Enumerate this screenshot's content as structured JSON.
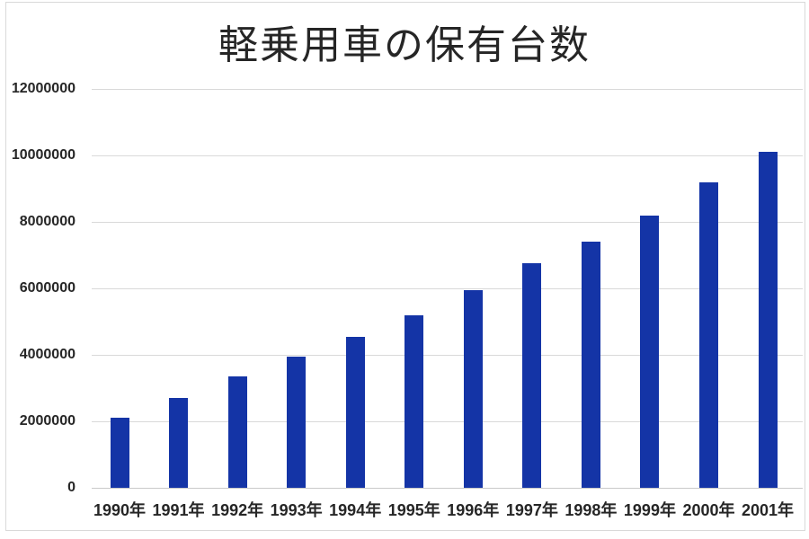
{
  "title": "軽乗用車の保有台数",
  "chart_data": {
    "type": "bar",
    "title": "軽乗用車の保有台数",
    "categories": [
      "1990年",
      "1991年",
      "1992年",
      "1993年",
      "1994年",
      "1995年",
      "1996年",
      "1997年",
      "1998年",
      "1999年",
      "2000年",
      "2001年"
    ],
    "values": [
      2100000,
      2700000,
      3350000,
      3950000,
      4550000,
      5200000,
      5950000,
      6750000,
      7400000,
      8200000,
      9200000,
      10100000
    ],
    "xlabel": "",
    "ylabel": "",
    "ylim": [
      0,
      12000000
    ],
    "yticks": [
      0,
      2000000,
      4000000,
      6000000,
      8000000,
      10000000,
      12000000
    ],
    "ytick_labels": [
      "0",
      "2000000",
      "4000000",
      "6000000",
      "8000000",
      "10000000",
      "12000000"
    ],
    "grid": true,
    "legend": "none",
    "bar_color": "#1434a6",
    "gridline_color": "#d9d9d9",
    "axis_line_color": "#c9c9c9",
    "text_color": "#262626",
    "background_color": "#ffffff"
  }
}
